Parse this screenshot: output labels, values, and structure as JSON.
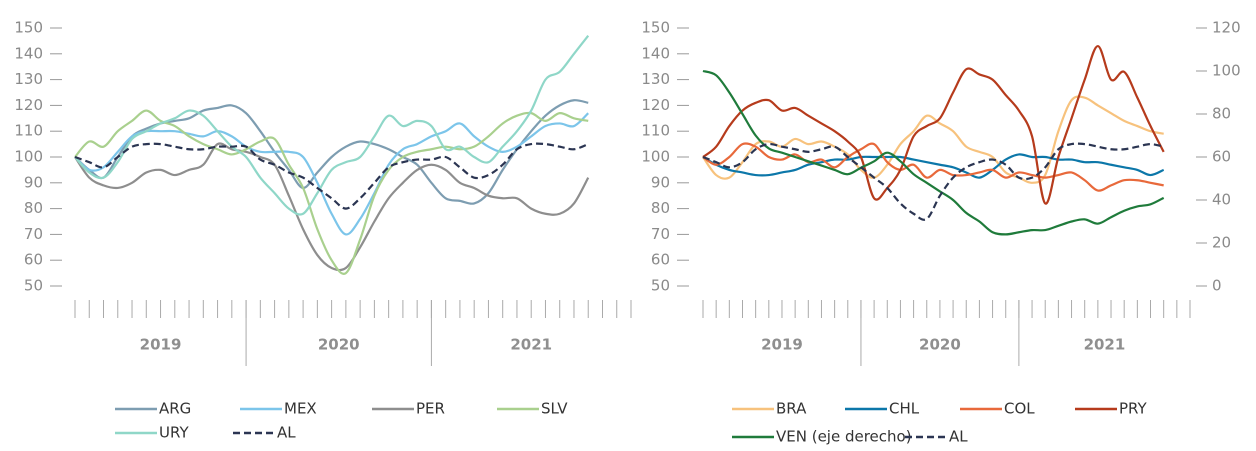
{
  "chart_data": [
    {
      "type": "line",
      "x": [
        0,
        1,
        2,
        3,
        4,
        5,
        6,
        7,
        8,
        9,
        10,
        11,
        12,
        13,
        14,
        15,
        16,
        17,
        18,
        19,
        20,
        21,
        22,
        23,
        24,
        25,
        26,
        27,
        28,
        29,
        30,
        31,
        32,
        33,
        34,
        35,
        36
      ],
      "xlim": [
        0,
        39
      ],
      "xticks": [
        0,
        1,
        2,
        3,
        4,
        5,
        6,
        7,
        8,
        9,
        10,
        11,
        12,
        13,
        14,
        15,
        16,
        17,
        18,
        19,
        20,
        21,
        22,
        23,
        24,
        25,
        26,
        27,
        28,
        29,
        30,
        31,
        32,
        33,
        34,
        35,
        36,
        37,
        38,
        39
      ],
      "xgroups": [
        {
          "label": "2019",
          "start": 0,
          "end": 12
        },
        {
          "label": "2020",
          "start": 12,
          "end": 25
        },
        {
          "label": "2021",
          "start": 25,
          "end": 39
        }
      ],
      "ylim": [
        50,
        150
      ],
      "yticks": [
        50,
        60,
        70,
        80,
        90,
        100,
        110,
        120,
        130,
        140,
        150
      ],
      "series": [
        {
          "name": "ARG",
          "color": "#7d9db1",
          "values": [
            100,
            95,
            92,
            100,
            108,
            111,
            113,
            114,
            115,
            118,
            119,
            120,
            117,
            110,
            102,
            95,
            88,
            94,
            100,
            104,
            106,
            105,
            103,
            100,
            97,
            90,
            84,
            83,
            82,
            86,
            95,
            103,
            110,
            116,
            120,
            122,
            121
          ]
        },
        {
          "name": "MEX",
          "color": "#7cc5ea",
          "values": [
            100,
            95,
            96,
            102,
            108,
            110,
            110,
            110,
            109,
            108,
            110,
            108,
            104,
            102,
            102,
            102,
            100,
            90,
            78,
            70,
            76,
            86,
            97,
            103,
            105,
            108,
            110,
            113,
            108,
            104,
            102,
            104,
            108,
            112,
            113,
            112,
            117
          ]
        },
        {
          "name": "PER",
          "color": "#8e8e8e",
          "values": [
            100,
            92,
            89,
            88,
            90,
            94,
            95,
            93,
            95,
            97,
            105,
            103,
            102,
            100,
            97,
            85,
            72,
            62,
            57,
            57,
            65,
            75,
            84,
            90,
            95,
            97,
            95,
            90,
            88,
            85,
            84,
            84,
            80,
            78,
            78,
            82,
            92
          ]
        },
        {
          "name": "SLV",
          "color": "#a9d08e",
          "values": [
            100,
            106,
            104,
            110,
            114,
            118,
            114,
            112,
            108,
            105,
            103,
            101,
            103,
            106,
            107,
            97,
            88,
            72,
            60,
            55,
            68,
            85,
            95,
            100,
            102,
            103,
            104,
            103,
            104,
            108,
            113,
            116,
            117,
            114,
            117,
            115,
            114
          ]
        },
        {
          "name": "URY",
          "color": "#8fd7c8",
          "values": [
            100,
            94,
            92,
            98,
            107,
            110,
            113,
            115,
            118,
            116,
            110,
            104,
            100,
            92,
            86,
            80,
            78,
            86,
            95,
            98,
            100,
            108,
            116,
            112,
            114,
            112,
            103,
            104,
            100,
            98,
            104,
            110,
            118,
            130,
            133,
            140,
            147
          ]
        },
        {
          "name": "AL",
          "color": "#2b3552",
          "dashed": true,
          "values": [
            100,
            98,
            96,
            100,
            104,
            105,
            105,
            104,
            103,
            103,
            104,
            104,
            104,
            99,
            97,
            94,
            92,
            88,
            84,
            80,
            84,
            90,
            96,
            98,
            99,
            99,
            100,
            96,
            92,
            93,
            97,
            103,
            105,
            105,
            104,
            103,
            105
          ]
        }
      ]
    },
    {
      "type": "line",
      "x": [
        0,
        1,
        2,
        3,
        4,
        5,
        6,
        7,
        8,
        9,
        10,
        11,
        12,
        13,
        14,
        15,
        16,
        17,
        18,
        19,
        20,
        21,
        22,
        23,
        24,
        25,
        26,
        27,
        28,
        29,
        30,
        31,
        32,
        33,
        34,
        35
      ],
      "xlim": [
        0,
        37
      ],
      "xticks": [
        0,
        1,
        2,
        3,
        4,
        5,
        6,
        7,
        8,
        9,
        10,
        11,
        12,
        13,
        14,
        15,
        16,
        17,
        18,
        19,
        20,
        21,
        22,
        23,
        24,
        25,
        26,
        27,
        28,
        29,
        30,
        31,
        32,
        33,
        34,
        35,
        36,
        37
      ],
      "xgroups": [
        {
          "label": "2019",
          "start": 0,
          "end": 12
        },
        {
          "label": "2020",
          "start": 12,
          "end": 24
        },
        {
          "label": "2021",
          "start": 24,
          "end": 37
        }
      ],
      "ylim": [
        50,
        150
      ],
      "yticks": [
        50,
        60,
        70,
        80,
        90,
        100,
        110,
        120,
        130,
        140,
        150
      ],
      "y2lim": [
        0,
        120
      ],
      "y2ticks": [
        0,
        20,
        40,
        60,
        80,
        100,
        120
      ],
      "series": [
        {
          "name": "BRA",
          "color": "#f7c27d",
          "values": [
            100,
            93,
            92,
            98,
            105,
            106,
            104,
            107,
            105,
            106,
            104,
            101,
            95,
            92,
            97,
            105,
            110,
            116,
            113,
            110,
            104,
            102,
            100,
            94,
            92,
            90,
            93,
            110,
            122,
            123,
            120,
            117,
            114,
            112,
            110,
            109
          ]
        },
        {
          "name": "CHL",
          "color": "#0c77a9",
          "values": [
            100,
            97,
            95,
            94,
            93,
            93,
            94,
            95,
            97,
            98,
            99,
            99,
            100,
            100,
            100,
            100,
            99,
            98,
            97,
            96,
            94,
            92,
            95,
            99,
            101,
            100,
            100,
            99,
            99,
            98,
            98,
            97,
            96,
            95,
            93,
            95
          ]
        },
        {
          "name": "COL",
          "color": "#e8693b",
          "values": [
            100,
            97,
            100,
            105,
            104,
            100,
            99,
            101,
            98,
            99,
            96,
            100,
            103,
            105,
            98,
            95,
            97,
            92,
            95,
            93,
            93,
            94,
            95,
            92,
            94,
            93,
            92,
            93,
            94,
            91,
            87,
            89,
            91,
            91,
            90,
            89
          ]
        },
        {
          "name": "PRY",
          "color": "#b63b1c",
          "values": [
            100,
            104,
            112,
            118,
            121,
            122,
            118,
            119,
            116,
            113,
            110,
            106,
            100,
            84,
            88,
            95,
            108,
            112,
            115,
            125,
            134,
            132,
            130,
            124,
            118,
            108,
            82,
            100,
            115,
            130,
            143,
            130,
            133,
            123,
            112,
            102
          ]
        },
        {
          "name": "VEN (eje derecho)",
          "color": "#1f7b3b",
          "axis": "y2",
          "values": [
            100,
            98,
            90,
            80,
            70,
            64,
            62,
            60,
            58,
            56,
            54,
            52,
            55,
            58,
            62,
            58,
            52,
            48,
            44,
            40,
            34,
            30,
            25,
            24,
            25,
            26,
            26,
            28,
            30,
            31,
            29,
            32,
            35,
            37,
            38,
            41
          ]
        },
        {
          "name": "AL",
          "color": "#2b3552",
          "dashed": true,
          "values": [
            100,
            98,
            96,
            98,
            103,
            105,
            104,
            103,
            102,
            103,
            104,
            100,
            96,
            92,
            88,
            82,
            78,
            76,
            85,
            92,
            96,
            98,
            99,
            97,
            92,
            92,
            96,
            103,
            105,
            105,
            104,
            103,
            103,
            104,
            105,
            104
          ]
        }
      ]
    }
  ]
}
